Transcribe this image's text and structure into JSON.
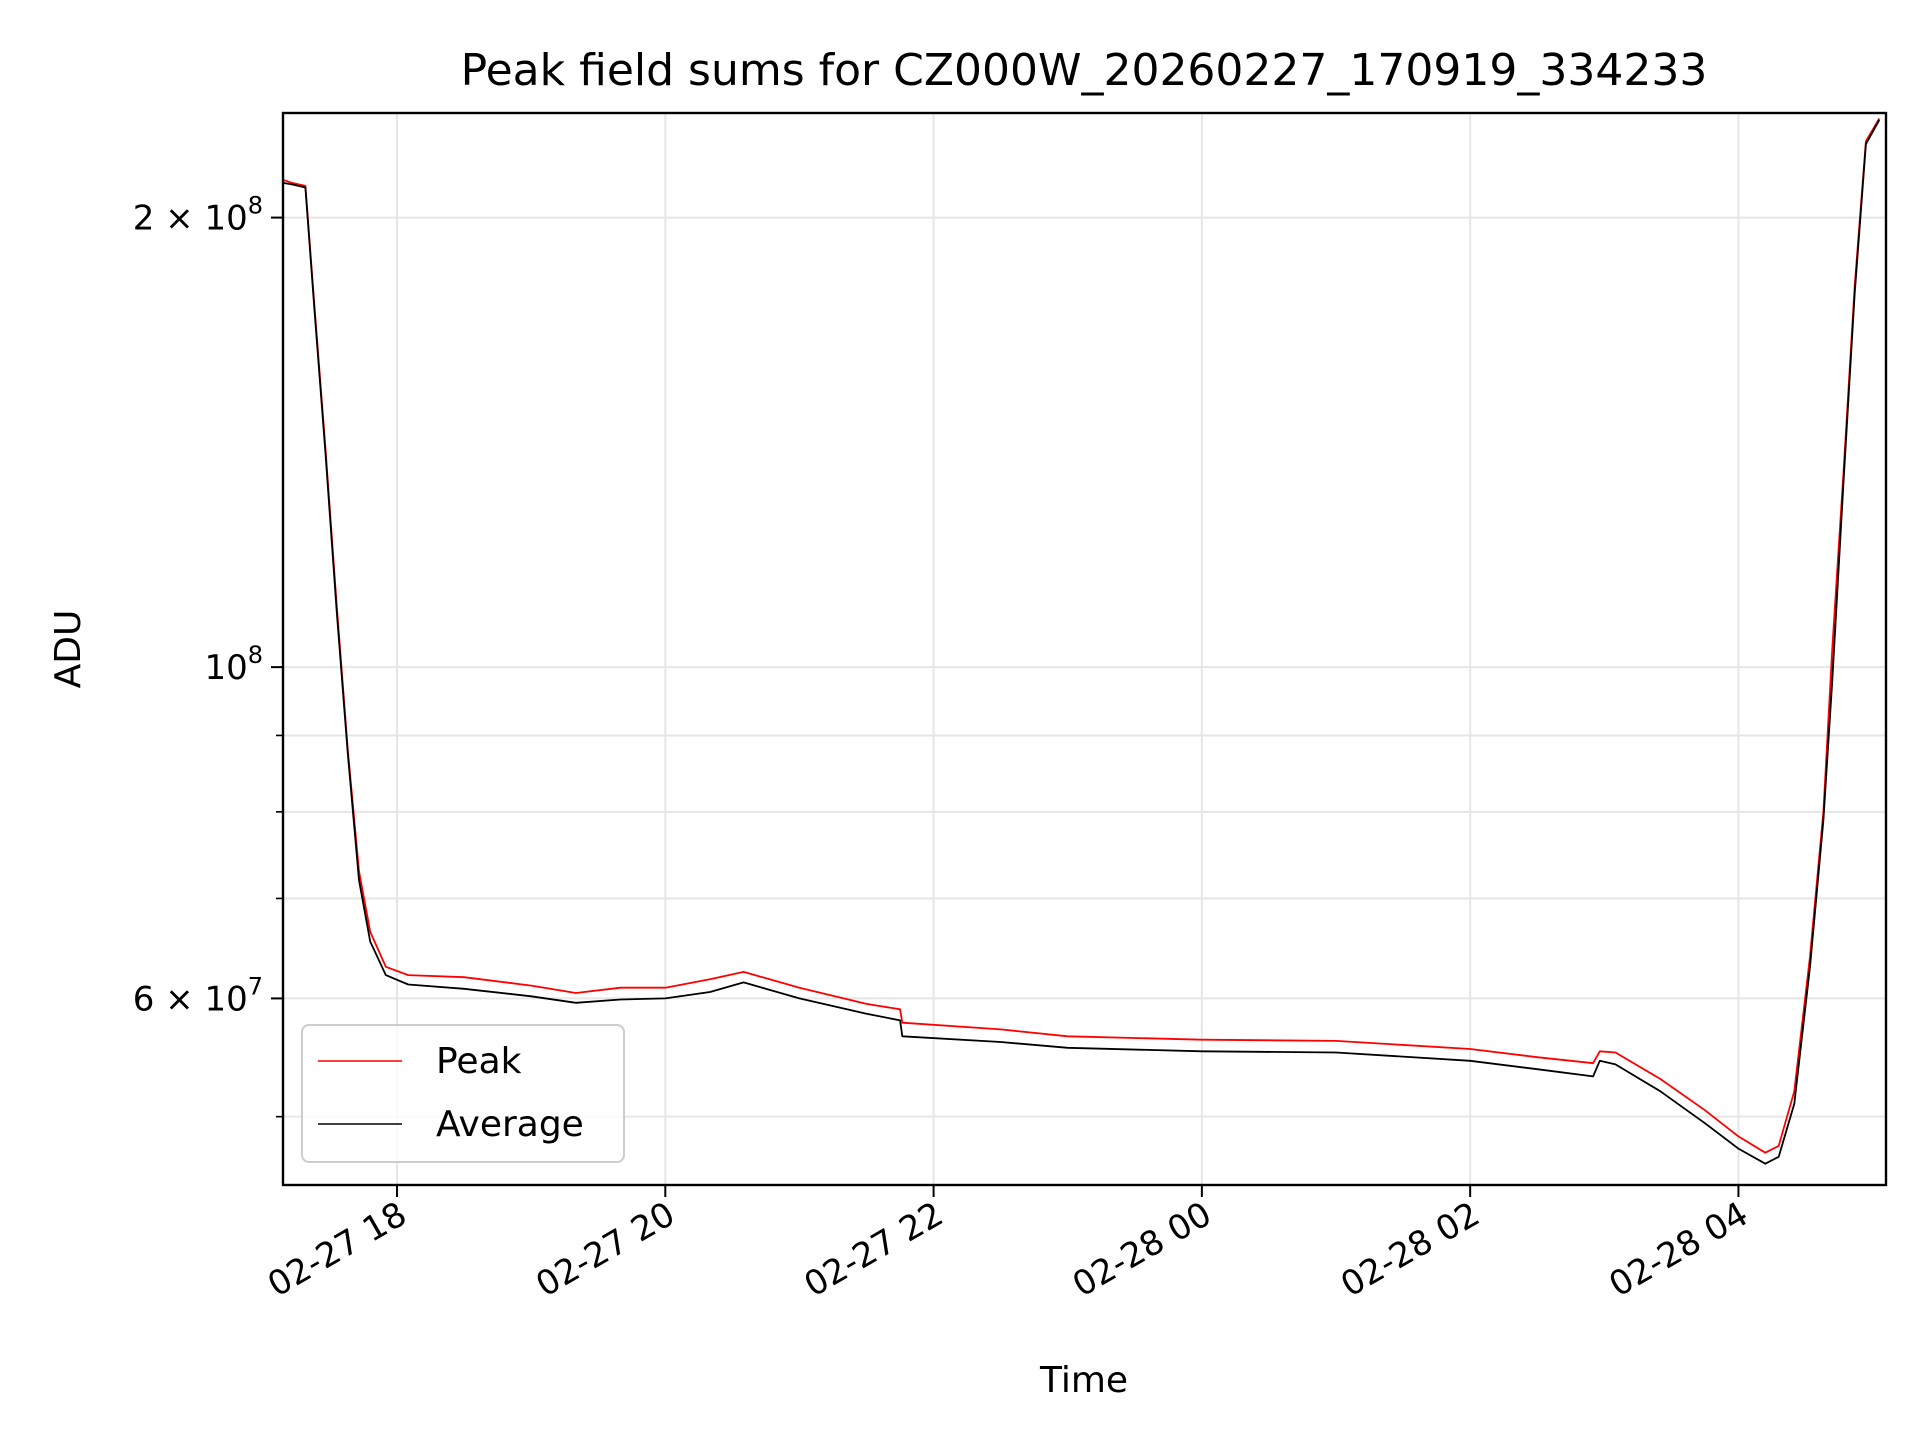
{
  "chart_data": {
    "type": "line",
    "title": "Peak field sums for CZ000W_20260227_170919_334233",
    "xlabel": "Time",
    "ylabel": "ADU",
    "y_scale": "log",
    "grid": true,
    "legend_position": "lower-left",
    "xlim": [
      "2026-02-27 17:09",
      "2026-02-28 05:06"
    ],
    "ylim": [
      45000000,
      235000000
    ],
    "x_ticks": [
      {
        "t": "2026-02-27 18:00",
        "label": "02-27 18"
      },
      {
        "t": "2026-02-27 20:00",
        "label": "02-27 20"
      },
      {
        "t": "2026-02-27 22:00",
        "label": "02-27 22"
      },
      {
        "t": "2026-02-28 00:00",
        "label": "02-28 00"
      },
      {
        "t": "2026-02-28 02:00",
        "label": "02-28 02"
      },
      {
        "t": "2026-02-28 04:00",
        "label": "02-28 04"
      }
    ],
    "y_ticks_major": [
      {
        "v": 60000000,
        "base": "6",
        "exp": "7"
      },
      {
        "v": 100000000,
        "base": "",
        "exp": "8"
      },
      {
        "v": 200000000,
        "base": "2",
        "exp": "8"
      }
    ],
    "y_ticks_minor": [
      50000000,
      70000000,
      80000000,
      90000000
    ],
    "series": [
      {
        "name": "Peak",
        "color": "#ff0000",
        "points": [
          [
            "2026-02-27 17:09",
            212000000
          ],
          [
            "2026-02-27 17:13",
            211000000
          ],
          [
            "2026-02-27 17:19",
            210000000
          ],
          [
            "2026-02-27 17:23",
            175000000
          ],
          [
            "2026-02-27 17:28",
            140000000
          ],
          [
            "2026-02-27 17:33",
            110000000
          ],
          [
            "2026-02-27 17:38",
            88000000
          ],
          [
            "2026-02-27 17:43",
            73000000
          ],
          [
            "2026-02-27 17:48",
            66500000
          ],
          [
            "2026-02-27 17:55",
            63000000
          ],
          [
            "2026-02-27 18:05",
            62200000
          ],
          [
            "2026-02-27 18:30",
            62000000
          ],
          [
            "2026-02-27 19:00",
            61200000
          ],
          [
            "2026-02-27 19:20",
            60500000
          ],
          [
            "2026-02-27 19:40",
            61000000
          ],
          [
            "2026-02-27 20:00",
            61000000
          ],
          [
            "2026-02-27 20:20",
            61800000
          ],
          [
            "2026-02-27 20:35",
            62500000
          ],
          [
            "2026-02-27 21:00",
            61000000
          ],
          [
            "2026-02-27 21:30",
            59500000
          ],
          [
            "2026-02-27 21:45",
            59000000
          ],
          [
            "2026-02-27 21:46",
            57800000
          ],
          [
            "2026-02-27 22:30",
            57200000
          ],
          [
            "2026-02-27 23:00",
            56600000
          ],
          [
            "2026-02-28 00:00",
            56300000
          ],
          [
            "2026-02-28 01:00",
            56200000
          ],
          [
            "2026-02-28 02:00",
            55500000
          ],
          [
            "2026-02-28 02:30",
            54800000
          ],
          [
            "2026-02-28 02:55",
            54300000
          ],
          [
            "2026-02-28 02:58",
            55300000
          ],
          [
            "2026-02-28 03:05",
            55200000
          ],
          [
            "2026-02-28 03:25",
            53000000
          ],
          [
            "2026-02-28 03:45",
            50500000
          ],
          [
            "2026-02-28 04:00",
            48500000
          ],
          [
            "2026-02-28 04:12",
            47300000
          ],
          [
            "2026-02-28 04:18",
            47800000
          ],
          [
            "2026-02-28 04:25",
            52000000
          ],
          [
            "2026-02-28 04:32",
            64000000
          ],
          [
            "2026-02-28 04:38",
            80000000
          ],
          [
            "2026-02-28 04:42",
            103000000
          ],
          [
            "2026-02-28 04:47",
            135000000
          ],
          [
            "2026-02-28 04:52",
            180000000
          ],
          [
            "2026-02-28 04:57",
            225000000
          ],
          [
            "2026-02-28 05:03",
            233000000
          ]
        ]
      },
      {
        "name": "Average",
        "color": "#000000",
        "points": [
          [
            "2026-02-27 17:09",
            211000000
          ],
          [
            "2026-02-27 17:13",
            210500000
          ],
          [
            "2026-02-27 17:19",
            209500000
          ],
          [
            "2026-02-27 17:23",
            174000000
          ],
          [
            "2026-02-27 17:28",
            139000000
          ],
          [
            "2026-02-27 17:33",
            109000000
          ],
          [
            "2026-02-27 17:38",
            87500000
          ],
          [
            "2026-02-27 17:43",
            72000000
          ],
          [
            "2026-02-27 17:48",
            65500000
          ],
          [
            "2026-02-27 17:55",
            62200000
          ],
          [
            "2026-02-27 18:05",
            61300000
          ],
          [
            "2026-02-27 18:30",
            60900000
          ],
          [
            "2026-02-27 19:00",
            60200000
          ],
          [
            "2026-02-27 19:20",
            59600000
          ],
          [
            "2026-02-27 19:40",
            59900000
          ],
          [
            "2026-02-27 20:00",
            60000000
          ],
          [
            "2026-02-27 20:20",
            60600000
          ],
          [
            "2026-02-27 20:35",
            61500000
          ],
          [
            "2026-02-27 21:00",
            60000000
          ],
          [
            "2026-02-27 21:30",
            58600000
          ],
          [
            "2026-02-27 21:45",
            58000000
          ],
          [
            "2026-02-27 21:46",
            56600000
          ],
          [
            "2026-02-27 22:30",
            56100000
          ],
          [
            "2026-02-27 23:00",
            55600000
          ],
          [
            "2026-02-28 00:00",
            55300000
          ],
          [
            "2026-02-28 01:00",
            55200000
          ],
          [
            "2026-02-28 02:00",
            54500000
          ],
          [
            "2026-02-28 02:30",
            53800000
          ],
          [
            "2026-02-28 02:55",
            53200000
          ],
          [
            "2026-02-28 02:58",
            54500000
          ],
          [
            "2026-02-28 03:05",
            54200000
          ],
          [
            "2026-02-28 03:25",
            52000000
          ],
          [
            "2026-02-28 03:45",
            49500000
          ],
          [
            "2026-02-28 04:00",
            47600000
          ],
          [
            "2026-02-28 04:12",
            46500000
          ],
          [
            "2026-02-28 04:18",
            47000000
          ],
          [
            "2026-02-28 04:25",
            51000000
          ],
          [
            "2026-02-28 04:32",
            63000000
          ],
          [
            "2026-02-28 04:38",
            79000000
          ],
          [
            "2026-02-28 04:42",
            98000000
          ],
          [
            "2026-02-28 04:47",
            133000000
          ],
          [
            "2026-02-28 04:52",
            178000000
          ],
          [
            "2026-02-28 04:57",
            224000000
          ],
          [
            "2026-02-28 05:03",
            232500000
          ]
        ]
      }
    ]
  }
}
